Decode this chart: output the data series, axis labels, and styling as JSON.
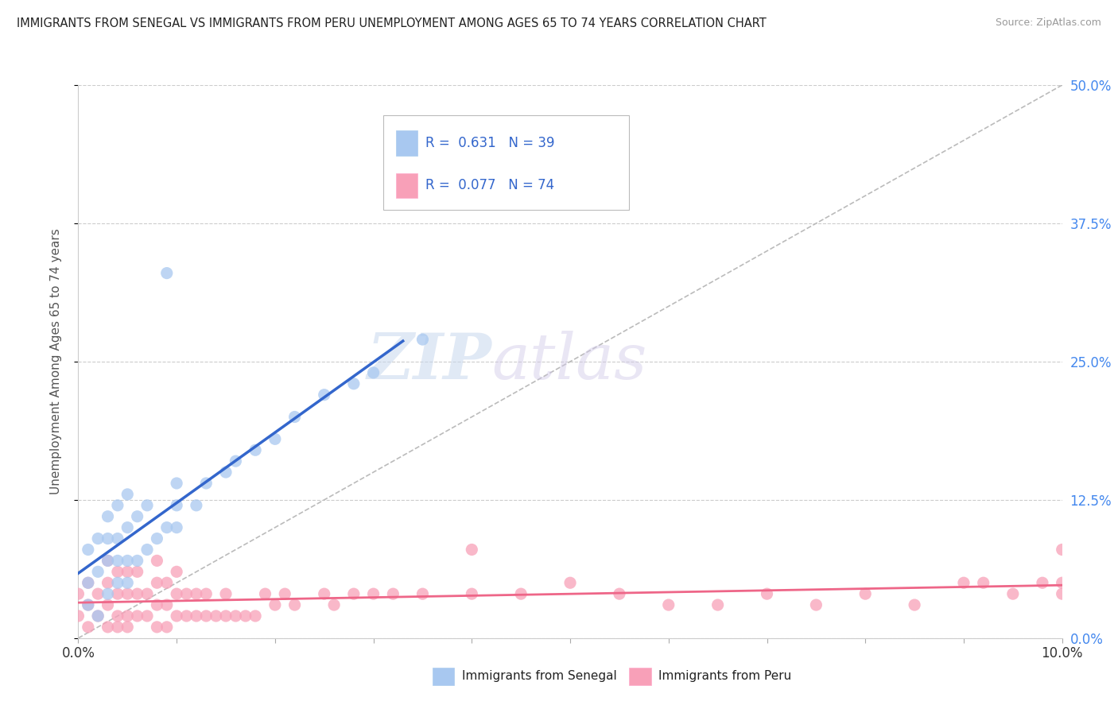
{
  "title": "IMMIGRANTS FROM SENEGAL VS IMMIGRANTS FROM PERU UNEMPLOYMENT AMONG AGES 65 TO 74 YEARS CORRELATION CHART",
  "source": "Source: ZipAtlas.com",
  "ylabel": "Unemployment Among Ages 65 to 74 years",
  "xlim": [
    0.0,
    0.1
  ],
  "ylim": [
    0.0,
    0.5
  ],
  "ytick_values": [
    0.0,
    0.125,
    0.25,
    0.375,
    0.5
  ],
  "xtick_values": [
    0.0,
    0.01,
    0.02,
    0.03,
    0.04,
    0.05,
    0.06,
    0.07,
    0.08,
    0.09,
    0.1
  ],
  "grid_color": "#cccccc",
  "background_color": "#ffffff",
  "senegal_color": "#a8c8f0",
  "senegal_line_color": "#3366cc",
  "peru_color": "#f8a0b8",
  "peru_line_color": "#ee6688",
  "diagonal_color": "#bbbbbb",
  "R_senegal": 0.631,
  "N_senegal": 39,
  "R_peru": 0.077,
  "N_peru": 74,
  "legend_label_senegal": "Immigrants from Senegal",
  "legend_label_peru": "Immigrants from Peru",
  "watermark_zip": "ZIP",
  "watermark_atlas": "atlas",
  "senegal_x": [
    0.001,
    0.001,
    0.001,
    0.002,
    0.002,
    0.002,
    0.003,
    0.003,
    0.003,
    0.003,
    0.004,
    0.004,
    0.004,
    0.004,
    0.005,
    0.005,
    0.005,
    0.005,
    0.006,
    0.006,
    0.007,
    0.007,
    0.008,
    0.009,
    0.009,
    0.01,
    0.01,
    0.01,
    0.012,
    0.013,
    0.015,
    0.016,
    0.018,
    0.02,
    0.022,
    0.025,
    0.028,
    0.03,
    0.035
  ],
  "senegal_y": [
    0.03,
    0.05,
    0.08,
    0.02,
    0.06,
    0.09,
    0.04,
    0.07,
    0.09,
    0.11,
    0.05,
    0.07,
    0.09,
    0.12,
    0.05,
    0.07,
    0.1,
    0.13,
    0.07,
    0.11,
    0.08,
    0.12,
    0.09,
    0.1,
    0.33,
    0.1,
    0.12,
    0.14,
    0.12,
    0.14,
    0.15,
    0.16,
    0.17,
    0.18,
    0.2,
    0.22,
    0.23,
    0.24,
    0.27
  ],
  "peru_x": [
    0.0,
    0.0,
    0.001,
    0.001,
    0.001,
    0.002,
    0.002,
    0.003,
    0.003,
    0.003,
    0.003,
    0.004,
    0.004,
    0.004,
    0.004,
    0.005,
    0.005,
    0.005,
    0.005,
    0.006,
    0.006,
    0.006,
    0.007,
    0.007,
    0.008,
    0.008,
    0.008,
    0.008,
    0.009,
    0.009,
    0.009,
    0.01,
    0.01,
    0.01,
    0.011,
    0.011,
    0.012,
    0.012,
    0.013,
    0.013,
    0.014,
    0.015,
    0.015,
    0.016,
    0.017,
    0.018,
    0.019,
    0.02,
    0.021,
    0.022,
    0.025,
    0.026,
    0.028,
    0.03,
    0.032,
    0.035,
    0.04,
    0.04,
    0.045,
    0.05,
    0.055,
    0.06,
    0.065,
    0.07,
    0.075,
    0.08,
    0.085,
    0.09,
    0.092,
    0.095,
    0.098,
    0.1,
    0.1,
    0.1
  ],
  "peru_y": [
    0.02,
    0.04,
    0.01,
    0.03,
    0.05,
    0.02,
    0.04,
    0.01,
    0.03,
    0.05,
    0.07,
    0.02,
    0.04,
    0.06,
    0.01,
    0.02,
    0.04,
    0.06,
    0.01,
    0.02,
    0.04,
    0.06,
    0.02,
    0.04,
    0.01,
    0.03,
    0.05,
    0.07,
    0.01,
    0.03,
    0.05,
    0.02,
    0.04,
    0.06,
    0.02,
    0.04,
    0.02,
    0.04,
    0.02,
    0.04,
    0.02,
    0.02,
    0.04,
    0.02,
    0.02,
    0.02,
    0.04,
    0.03,
    0.04,
    0.03,
    0.04,
    0.03,
    0.04,
    0.04,
    0.04,
    0.04,
    0.04,
    0.08,
    0.04,
    0.05,
    0.04,
    0.03,
    0.03,
    0.04,
    0.03,
    0.04,
    0.03,
    0.05,
    0.05,
    0.04,
    0.05,
    0.04,
    0.08,
    0.05
  ],
  "senegal_line_x": [
    0.0,
    0.033
  ],
  "senegal_line_y_start": 0.0,
  "peru_line_x": [
    0.0,
    0.1
  ],
  "peru_line_y": [
    0.022,
    0.082
  ]
}
